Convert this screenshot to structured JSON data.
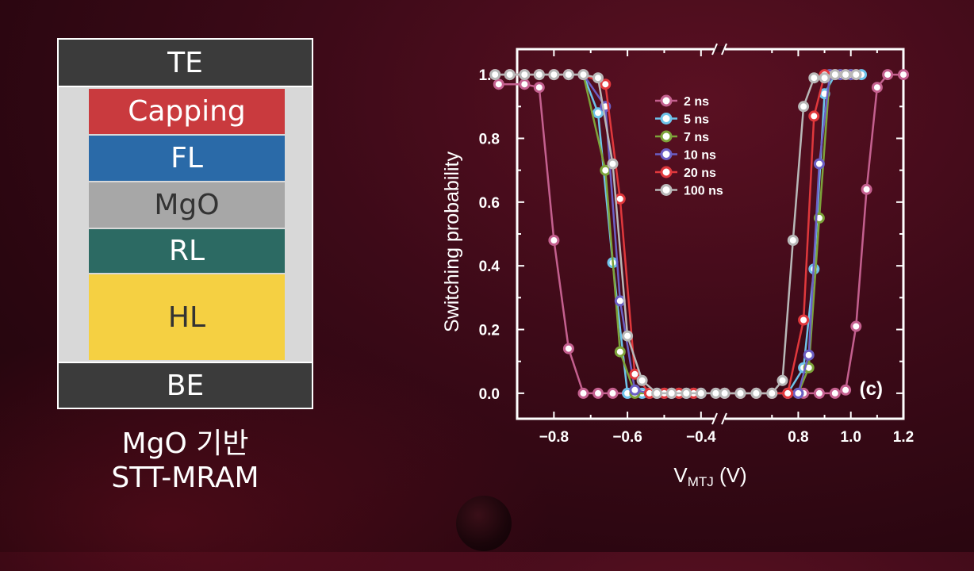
{
  "diagram": {
    "layers": {
      "te": "TE",
      "capping": "Capping",
      "fl": "FL",
      "mgo": "MgO",
      "rl": "RL",
      "hl": "HL",
      "be": "BE"
    },
    "caption_line1": "MgO 기반",
    "caption_line2": "STT-MRAM"
  },
  "chart_data": {
    "type": "line",
    "panel_label": "(c)",
    "ylabel": "Switching probability",
    "xlabel": "V",
    "xlabel_sub": "MTJ",
    "xlabel_unit": " (V)",
    "axis_break": true,
    "x_left_segment": [
      -0.9,
      -0.35
    ],
    "x_right_segment": [
      0.5,
      1.2
    ],
    "ylim": [
      -0.08,
      1.08
    ],
    "x_ticks": [
      -0.8,
      -0.6,
      -0.4,
      0.8,
      1.0,
      1.2
    ],
    "x_tick_labels": [
      "−0.8",
      "−0.6",
      "−0.4",
      "0.8",
      "1.0",
      "1.2"
    ],
    "y_ticks": [
      0.0,
      0.2,
      0.4,
      0.6,
      0.8,
      1.0
    ],
    "y_tick_labels": [
      "0.0",
      "0.2",
      "0.4",
      "0.6",
      "0.8",
      "1.0"
    ],
    "legend_position": "top-center",
    "series": [
      {
        "name": "2 ns",
        "color": "#c4608f",
        "negative": [
          [
            -0.96,
            1.0
          ],
          [
            -0.95,
            0.97
          ],
          [
            -0.88,
            0.97
          ],
          [
            -0.84,
            0.96
          ],
          [
            -0.8,
            0.48
          ],
          [
            -0.76,
            0.14
          ],
          [
            -0.72,
            0.0
          ],
          [
            -0.68,
            0.0
          ],
          [
            -0.64,
            0.0
          ],
          [
            -0.6,
            0.0
          ],
          [
            -0.56,
            0.0
          ],
          [
            -0.52,
            0.0
          ],
          [
            -0.48,
            0.0
          ],
          [
            -0.44,
            0.0
          ],
          [
            -0.4,
            0.0
          ],
          [
            -0.36,
            0.0
          ]
        ],
        "positive": [
          [
            0.52,
            0.0
          ],
          [
            0.58,
            0.0
          ],
          [
            0.64,
            0.0
          ],
          [
            0.7,
            0.0
          ],
          [
            0.76,
            0.0
          ],
          [
            0.82,
            0.0
          ],
          [
            0.88,
            0.0
          ],
          [
            0.94,
            0.0
          ],
          [
            0.98,
            0.01
          ],
          [
            1.02,
            0.21
          ],
          [
            1.06,
            0.64
          ],
          [
            1.1,
            0.96
          ],
          [
            1.14,
            1.0
          ],
          [
            1.2,
            1.0
          ]
        ]
      },
      {
        "name": "5 ns",
        "color": "#6ec3ea",
        "negative": [
          [
            -0.96,
            1.0
          ],
          [
            -0.92,
            1.0
          ],
          [
            -0.88,
            1.0
          ],
          [
            -0.84,
            1.0
          ],
          [
            -0.8,
            1.0
          ],
          [
            -0.76,
            1.0
          ],
          [
            -0.72,
            1.0
          ],
          [
            -0.68,
            0.88
          ],
          [
            -0.64,
            0.41
          ],
          [
            -0.6,
            0.0
          ],
          [
            -0.56,
            0.0
          ],
          [
            -0.52,
            0.0
          ],
          [
            -0.48,
            0.0
          ],
          [
            -0.44,
            0.0
          ],
          [
            -0.4,
            0.0
          ]
        ],
        "positive": [
          [
            0.52,
            0.0
          ],
          [
            0.58,
            0.0
          ],
          [
            0.64,
            0.0
          ],
          [
            0.7,
            0.0
          ],
          [
            0.76,
            0.0
          ],
          [
            0.82,
            0.08
          ],
          [
            0.86,
            0.39
          ],
          [
            0.9,
            0.94
          ],
          [
            0.94,
            1.0
          ],
          [
            1.0,
            1.0
          ],
          [
            1.04,
            1.0
          ]
        ]
      },
      {
        "name": "7 ns",
        "color": "#7da33a",
        "negative": [
          [
            -0.96,
            1.0
          ],
          [
            -0.92,
            1.0
          ],
          [
            -0.88,
            1.0
          ],
          [
            -0.84,
            1.0
          ],
          [
            -0.8,
            1.0
          ],
          [
            -0.76,
            1.0
          ],
          [
            -0.72,
            1.0
          ],
          [
            -0.66,
            0.7
          ],
          [
            -0.62,
            0.13
          ],
          [
            -0.58,
            0.0
          ],
          [
            -0.54,
            0.0
          ],
          [
            -0.5,
            0.0
          ],
          [
            -0.46,
            0.0
          ],
          [
            -0.42,
            0.0
          ]
        ],
        "positive": [
          [
            0.52,
            0.0
          ],
          [
            0.58,
            0.0
          ],
          [
            0.64,
            0.0
          ],
          [
            0.7,
            0.0
          ],
          [
            0.76,
            0.0
          ],
          [
            0.8,
            0.0
          ],
          [
            0.84,
            0.08
          ],
          [
            0.88,
            0.55
          ],
          [
            0.92,
            1.0
          ],
          [
            0.96,
            1.0
          ],
          [
            1.0,
            1.0
          ]
        ]
      },
      {
        "name": "10 ns",
        "color": "#6b5fc4",
        "negative": [
          [
            -0.96,
            1.0
          ],
          [
            -0.92,
            1.0
          ],
          [
            -0.88,
            1.0
          ],
          [
            -0.84,
            1.0
          ],
          [
            -0.8,
            1.0
          ],
          [
            -0.76,
            1.0
          ],
          [
            -0.72,
            1.0
          ],
          [
            -0.66,
            0.9
          ],
          [
            -0.62,
            0.29
          ],
          [
            -0.58,
            0.01
          ],
          [
            -0.54,
            0.0
          ],
          [
            -0.5,
            0.0
          ],
          [
            -0.46,
            0.0
          ],
          [
            -0.42,
            0.0
          ]
        ],
        "positive": [
          [
            0.52,
            0.0
          ],
          [
            0.58,
            0.0
          ],
          [
            0.64,
            0.0
          ],
          [
            0.7,
            0.0
          ],
          [
            0.76,
            0.0
          ],
          [
            0.8,
            0.0
          ],
          [
            0.84,
            0.12
          ],
          [
            0.88,
            0.72
          ],
          [
            0.92,
            1.0
          ],
          [
            0.96,
            1.0
          ],
          [
            1.0,
            1.0
          ]
        ]
      },
      {
        "name": "20 ns",
        "color": "#e0383c",
        "negative": [
          [
            -0.96,
            1.0
          ],
          [
            -0.92,
            1.0
          ],
          [
            -0.88,
            1.0
          ],
          [
            -0.84,
            1.0
          ],
          [
            -0.8,
            1.0
          ],
          [
            -0.76,
            1.0
          ],
          [
            -0.72,
            1.0
          ],
          [
            -0.66,
            0.97
          ],
          [
            -0.62,
            0.61
          ],
          [
            -0.58,
            0.06
          ],
          [
            -0.54,
            0.0
          ],
          [
            -0.5,
            0.0
          ],
          [
            -0.46,
            0.0
          ],
          [
            -0.42,
            0.0
          ]
        ],
        "positive": [
          [
            0.52,
            0.0
          ],
          [
            0.58,
            0.0
          ],
          [
            0.64,
            0.0
          ],
          [
            0.7,
            0.0
          ],
          [
            0.76,
            0.0
          ],
          [
            0.82,
            0.23
          ],
          [
            0.86,
            0.87
          ],
          [
            0.9,
            1.0
          ],
          [
            0.94,
            1.0
          ],
          [
            0.98,
            1.0
          ],
          [
            1.02,
            1.0
          ]
        ]
      },
      {
        "name": "100 ns",
        "color": "#b8b8b8",
        "negative": [
          [
            -0.96,
            1.0
          ],
          [
            -0.92,
            1.0
          ],
          [
            -0.88,
            1.0
          ],
          [
            -0.84,
            1.0
          ],
          [
            -0.8,
            1.0
          ],
          [
            -0.76,
            1.0
          ],
          [
            -0.72,
            1.0
          ],
          [
            -0.68,
            0.99
          ],
          [
            -0.64,
            0.72
          ],
          [
            -0.6,
            0.18
          ],
          [
            -0.56,
            0.04
          ],
          [
            -0.52,
            0.0
          ],
          [
            -0.48,
            0.0
          ],
          [
            -0.44,
            0.0
          ],
          [
            -0.4,
            0.0
          ],
          [
            -0.36,
            0.0
          ]
        ],
        "positive": [
          [
            0.52,
            0.0
          ],
          [
            0.58,
            0.0
          ],
          [
            0.64,
            0.0
          ],
          [
            0.7,
            0.0
          ],
          [
            0.74,
            0.04
          ],
          [
            0.78,
            0.48
          ],
          [
            0.82,
            0.9
          ],
          [
            0.86,
            0.99
          ],
          [
            0.9,
            0.99
          ],
          [
            0.94,
            1.0
          ],
          [
            0.98,
            1.0
          ],
          [
            1.02,
            1.0
          ]
        ]
      }
    ]
  }
}
